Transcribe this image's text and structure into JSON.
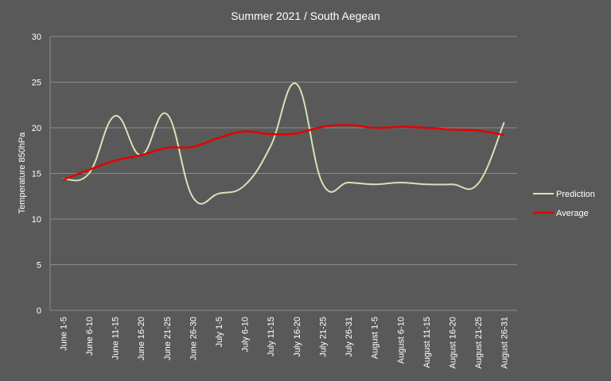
{
  "chart_data": {
    "type": "line",
    "title": "Summer 2021 / South Aegean",
    "xlabel": "",
    "ylabel": "Temperature 850hPa",
    "ylim": [
      0,
      30
    ],
    "yticks": [
      0,
      5,
      10,
      15,
      20,
      25,
      30
    ],
    "grid": true,
    "legend": "right",
    "categories": [
      "June 1-5",
      "June 6-10",
      "June 11-15",
      "June 16-20",
      "June 21-25",
      "June 26-30",
      "July 1-5",
      "July 6-10",
      "July 11-15",
      "July 16-20",
      "July 21-25",
      "July 26-31",
      "August 1-5",
      "August 6-10",
      "August 11-15",
      "August 16-20",
      "August 21-25",
      "August 26-31"
    ],
    "series": [
      {
        "name": "Prediction",
        "color": "#d3e4b5",
        "values": [
          14.4,
          15.0,
          21.3,
          17.0,
          21.5,
          12.4,
          12.8,
          13.7,
          18.0,
          24.8,
          13.9,
          14.0,
          13.8,
          14.0,
          13.8,
          13.8,
          13.9,
          20.6
        ]
      },
      {
        "name": "Average",
        "color": "#e60000",
        "values": [
          14.3,
          15.4,
          16.4,
          17.0,
          17.8,
          17.9,
          18.9,
          19.6,
          19.3,
          19.4,
          20.1,
          20.3,
          20.0,
          20.1,
          20.0,
          19.8,
          19.7,
          19.2
        ]
      }
    ]
  }
}
